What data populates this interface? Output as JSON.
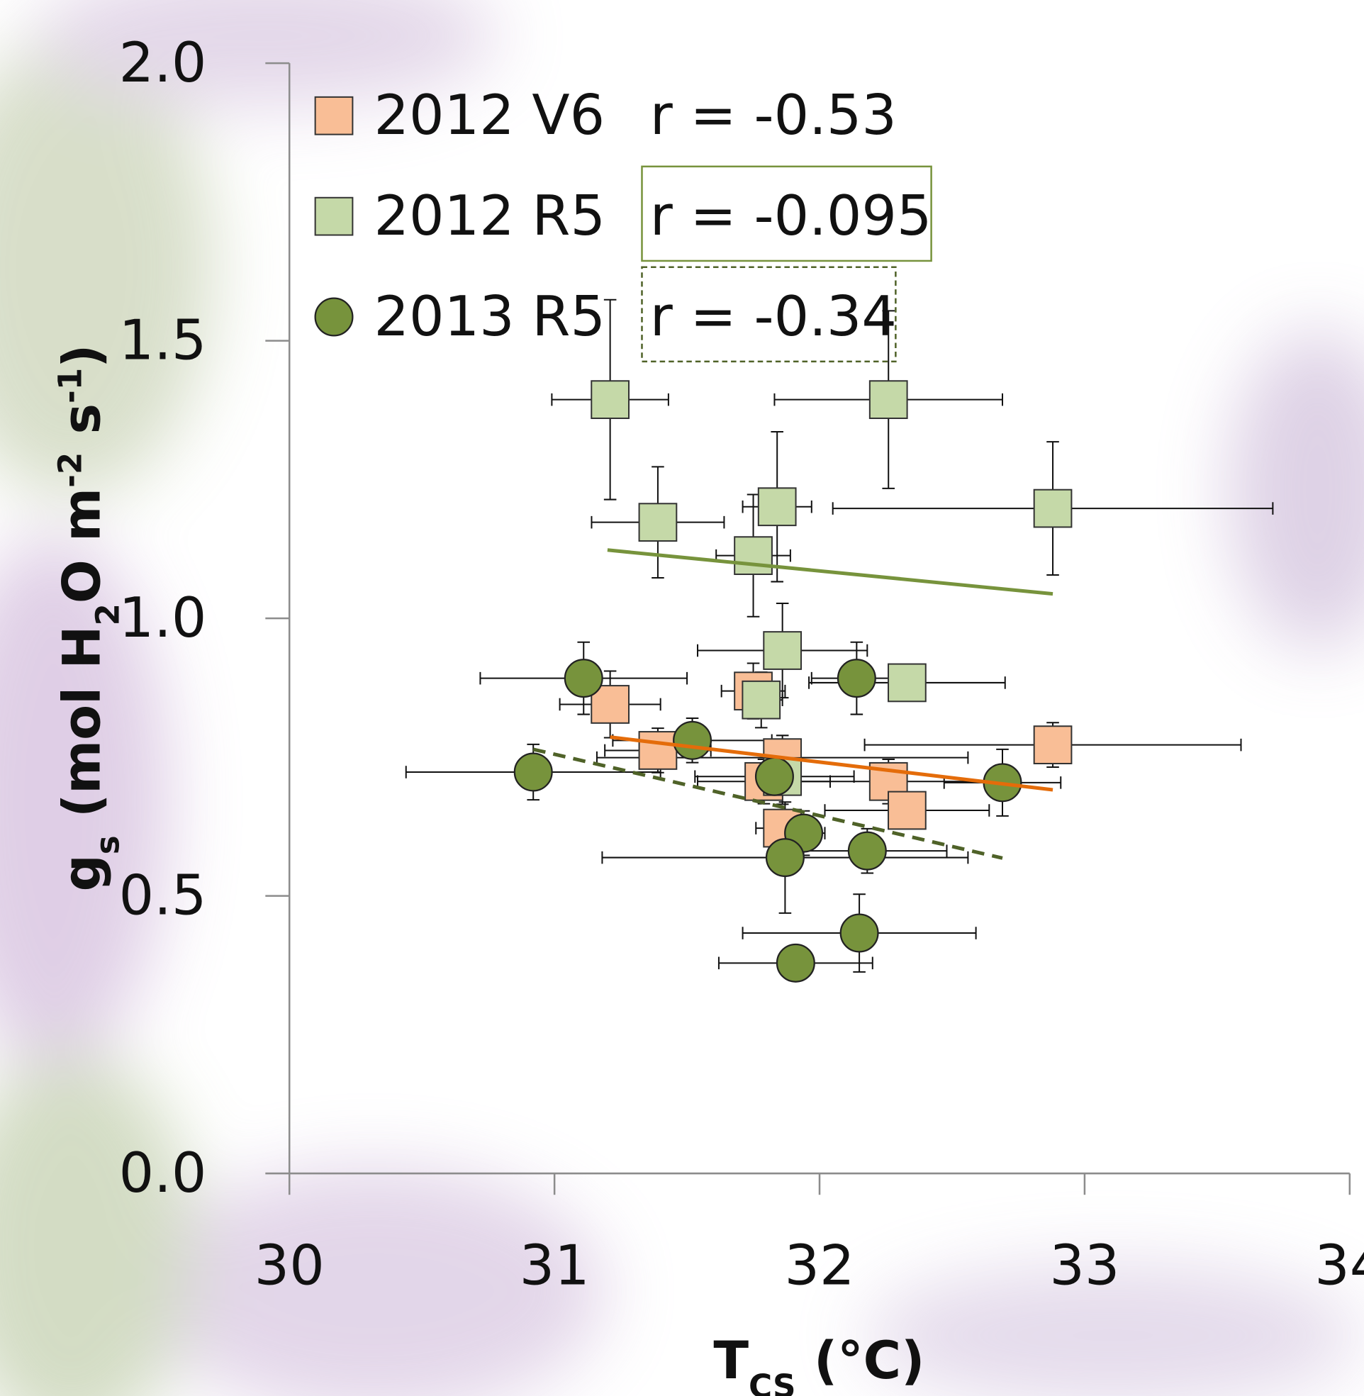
{
  "chart_data": {
    "type": "scatter",
    "xlabel": [
      {
        "text": "T"
      },
      {
        "text": "CS",
        "shift": "sub"
      },
      {
        "text": " (°C)"
      }
    ],
    "ylabel": [
      {
        "text": "g"
      },
      {
        "text": "s",
        "shift": "sub"
      },
      {
        "text": " (mol H"
      },
      {
        "text": "2",
        "shift": "sub"
      },
      {
        "text": "O m"
      },
      {
        "text": "-2",
        "shift": "super"
      },
      {
        "text": " s"
      },
      {
        "text": "-1",
        "shift": "super"
      },
      {
        "text": ")"
      }
    ],
    "xlim": [
      30,
      34
    ],
    "ylim": [
      0,
      2
    ],
    "xticks": [
      30,
      31,
      32,
      33,
      34
    ],
    "yticks": [
      {
        "value": 0,
        "label": "0.0"
      },
      {
        "value": 0.5,
        "label": "0.5"
      },
      {
        "value": 1,
        "label": "1.0"
      },
      {
        "value": 1.5,
        "label": "1.5"
      },
      {
        "value": 2,
        "label": "2.0"
      }
    ],
    "series": [
      {
        "name": "2012 V6",
        "marker": "square",
        "color": "#f9be96",
        "line_color": "#e46c0a",
        "line_style": "solid",
        "r_label": "r = -0.53",
        "r_box": "none",
        "x": [
          31.21,
          31.75,
          31.39,
          31.86,
          31.79,
          32.26,
          32.33,
          31.86,
          32.88
        ],
        "values": [
          0.845,
          0.869,
          0.762,
          0.749,
          0.706,
          0.706,
          0.654,
          0.622,
          0.772
        ],
        "xerr": [
          0.19,
          0.12,
          0.2,
          0.7,
          0.25,
          0.45,
          0.31,
          0.1,
          0.71
        ],
        "yerr": [
          0.06,
          0.05,
          0.04,
          0.04,
          0.04,
          0.04,
          0.02,
          0.03,
          0.04
        ],
        "trendline": {
          "x": [
            31.21,
            32.88
          ],
          "y": [
            0.786,
            0.691
          ]
        }
      },
      {
        "name": "2012 R5",
        "marker": "square",
        "color": "#c5d9a8",
        "line_color": "#77933c",
        "line_style": "solid",
        "r_label": "r = -0.095",
        "r_box": "solid",
        "x": [
          31.21,
          32.26,
          31.39,
          31.84,
          32.88,
          31.75,
          31.86,
          32.33,
          31.78,
          31.86
        ],
        "values": [
          1.394,
          1.394,
          1.173,
          1.201,
          1.198,
          1.113,
          0.942,
          0.884,
          0.853,
          0.715
        ],
        "xerr": [
          0.22,
          0.43,
          0.25,
          0.13,
          0.83,
          0.14,
          0.32,
          0.37,
          0.08,
          0.05
        ],
        "yerr": [
          0.18,
          0.16,
          0.1,
          0.135,
          0.12,
          0.11,
          0.085,
          0.02,
          0.05,
          0.05
        ],
        "trendline": {
          "x": [
            31.2,
            32.88
          ],
          "y": [
            1.123,
            1.044
          ]
        }
      },
      {
        "name": "2013 R5",
        "marker": "circle",
        "color": "#77933c",
        "line_color": "#4f6228",
        "line_style": "dashed",
        "r_label": "r = -0.34",
        "r_box": "dashed",
        "x": [
          31.11,
          32.14,
          31.52,
          30.92,
          31.83,
          32.69,
          31.94,
          32.18,
          31.87,
          32.15,
          31.91
        ],
        "values": [
          0.892,
          0.892,
          0.78,
          0.723,
          0.715,
          0.704,
          0.613,
          0.581,
          0.569,
          0.433,
          0.379
        ],
        "xerr": [
          0.39,
          0.17,
          0.3,
          0.48,
          0.3,
          0.22,
          0.08,
          0.3,
          0.69,
          0.44,
          0.29
        ],
        "yerr": [
          0.065,
          0.065,
          0.04,
          0.05,
          0.04,
          0.06,
          0.04,
          0.04,
          0.1,
          0.07,
          0.02
        ],
        "trendline": {
          "x": [
            30.92,
            32.69
          ],
          "y": [
            0.764,
            0.568
          ]
        }
      }
    ]
  }
}
